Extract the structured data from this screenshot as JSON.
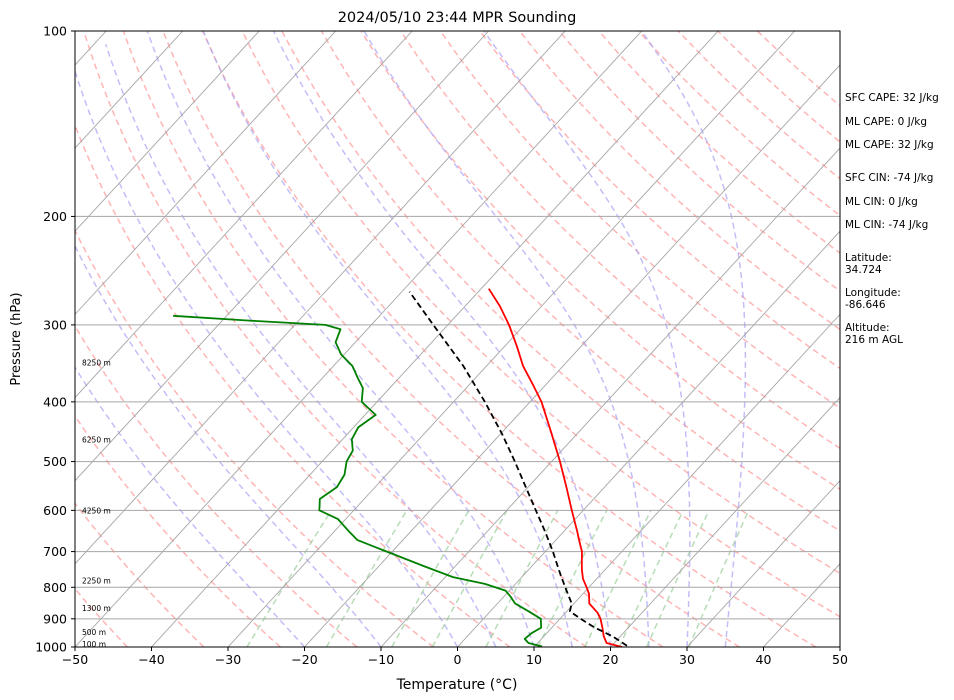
{
  "chart_data": {
    "type": "line",
    "title": "2024/05/10 23:44 MPR Sounding",
    "xlabel": "Temperature (°C)",
    "ylabel": "Pressure (hPa)",
    "xlim": [
      -50,
      50
    ],
    "ylim": [
      1000,
      100
    ],
    "y_scale": "log",
    "skew": true,
    "grid": true,
    "x_ticks": [
      "−50",
      "−40",
      "−30",
      "−20",
      "−10",
      "0",
      "10",
      "20",
      "30",
      "40",
      "50"
    ],
    "y_ticks": [
      "100",
      "200",
      "300",
      "400",
      "500",
      "600",
      "700",
      "800",
      "900",
      "1000"
    ],
    "height_labels": [
      {
        "label": "100 m",
        "pressure": 988
      },
      {
        "label": "500 m",
        "pressure": 945
      },
      {
        "label": "1300 m",
        "pressure": 865
      },
      {
        "label": "2250 m",
        "pressure": 780
      },
      {
        "label": "4250 m",
        "pressure": 600
      },
      {
        "label": "6250 m",
        "pressure": 460
      },
      {
        "label": "8250 m",
        "pressure": 345
      }
    ],
    "series": [
      {
        "role": "temperature",
        "color": "#ff0000",
        "points": [
          [
            1000,
            21.5
          ],
          [
            985,
            19.0
          ],
          [
            960,
            17.8
          ],
          [
            930,
            16.6
          ],
          [
            900,
            15.3
          ],
          [
            880,
            14.2
          ],
          [
            850,
            12.0
          ],
          [
            820,
            10.8
          ],
          [
            800,
            9.7
          ],
          [
            775,
            8.2
          ],
          [
            750,
            7.0
          ],
          [
            725,
            5.9
          ],
          [
            700,
            4.8
          ],
          [
            675,
            3.3
          ],
          [
            650,
            1.8
          ],
          [
            600,
            -1.5
          ],
          [
            550,
            -5.0
          ],
          [
            500,
            -8.9
          ],
          [
            450,
            -13.4
          ],
          [
            400,
            -18.5
          ],
          [
            375,
            -21.7
          ],
          [
            350,
            -25.2
          ],
          [
            325,
            -28.4
          ],
          [
            300,
            -32.0
          ],
          [
            280,
            -35.4
          ],
          [
            262,
            -39.0
          ]
        ]
      },
      {
        "role": "dewpoint",
        "color": "#008000",
        "points": [
          [
            998,
            11.0
          ],
          [
            985,
            8.8
          ],
          [
            970,
            7.8
          ],
          [
            950,
            8.0
          ],
          [
            930,
            8.6
          ],
          [
            900,
            7.5
          ],
          [
            875,
            5.0
          ],
          [
            860,
            3.4
          ],
          [
            850,
            2.3
          ],
          [
            830,
            1.0
          ],
          [
            810,
            -0.5
          ],
          [
            790,
            -4.0
          ],
          [
            770,
            -9.0
          ],
          [
            740,
            -14.0
          ],
          [
            710,
            -19.0
          ],
          [
            690,
            -22.5
          ],
          [
            670,
            -26.0
          ],
          [
            650,
            -28.0
          ],
          [
            620,
            -31.0
          ],
          [
            600,
            -34.5
          ],
          [
            590,
            -35.0
          ],
          [
            575,
            -35.8
          ],
          [
            550,
            -35.0
          ],
          [
            525,
            -35.5
          ],
          [
            500,
            -36.8
          ],
          [
            480,
            -37.3
          ],
          [
            460,
            -38.8
          ],
          [
            440,
            -39.4
          ],
          [
            420,
            -38.6
          ],
          [
            400,
            -42.0
          ],
          [
            380,
            -43.5
          ],
          [
            365,
            -45.5
          ],
          [
            350,
            -47.5
          ],
          [
            335,
            -50.4
          ],
          [
            320,
            -52.6
          ],
          [
            305,
            -53.5
          ],
          [
            300,
            -56.0
          ],
          [
            295,
            -67.0
          ],
          [
            290,
            -77.0
          ]
        ]
      },
      {
        "role": "parcel",
        "color": "#000000",
        "dashed": true,
        "points": [
          [
            995,
            22.0
          ],
          [
            960,
            18.9
          ],
          [
            930,
            15.6
          ],
          [
            900,
            12.7
          ],
          [
            875,
            10.4
          ],
          [
            850,
            9.7
          ],
          [
            800,
            6.9
          ],
          [
            750,
            4.0
          ],
          [
            700,
            1.0
          ],
          [
            650,
            -2.4
          ],
          [
            600,
            -6.2
          ],
          [
            550,
            -10.3
          ],
          [
            500,
            -14.8
          ],
          [
            450,
            -19.9
          ],
          [
            400,
            -25.9
          ],
          [
            350,
            -33.0
          ],
          [
            300,
            -41.9
          ],
          [
            265,
            -49.0
          ]
        ]
      }
    ],
    "info_panel": {
      "sfc_cape": "SFC CAPE: 32 J/kg",
      "ml_cape_1": "ML CAPE: 0 J/kg",
      "ml_cape_2": "ML CAPE: 32 J/kg",
      "sfc_cin": "SFC CIN: -74 J/kg",
      "ml_cin_1": "ML CIN: 0 J/kg",
      "ml_cin_2": "ML CIN: -74 J/kg",
      "latitude_label": "Latitude:",
      "latitude_value": "34.724",
      "longitude_label": "Longitude:",
      "longitude_value": "-86.646",
      "altitude_label": "Altitude:",
      "altitude_value": "216 m AGL"
    }
  }
}
